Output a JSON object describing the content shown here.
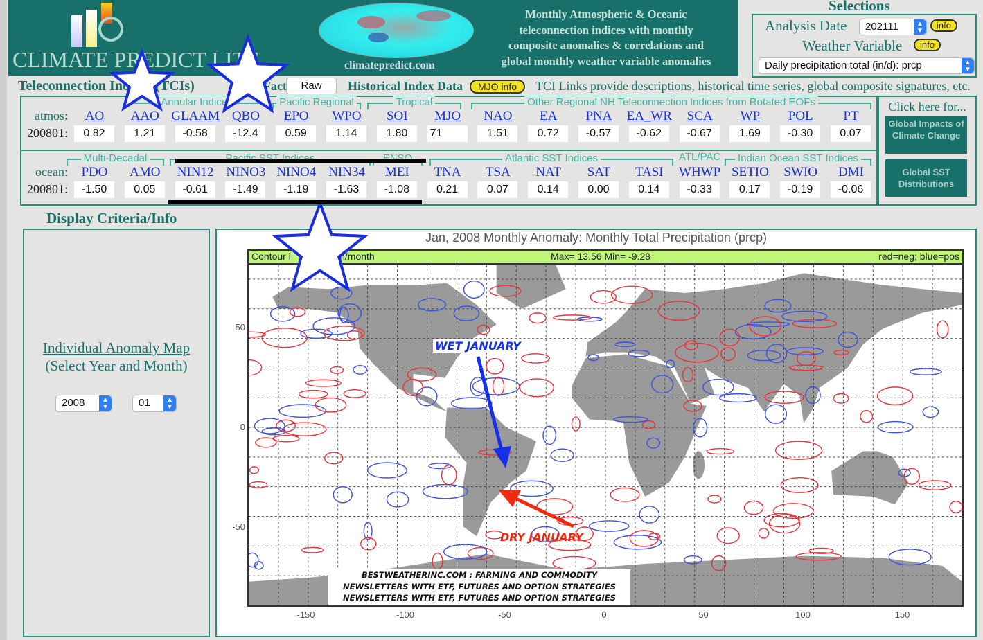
{
  "header": {
    "logo_text": "CLIMATE PREDICT LITE",
    "site_url": "climatepredict.com",
    "description": [
      "Monthly Atmospheric & Oceanic",
      "teleconnection indices with monthly",
      "composite anomalies & correlations and",
      "global monthly weather variable anomalies"
    ]
  },
  "selections": {
    "title": "Selections",
    "analysis_date_label": "Analysis Date",
    "analysis_date": "202111",
    "info_label": "info",
    "weather_variable_label": "Weather Variable",
    "weather_variable": "Daily precipitation total (in/d): prcp"
  },
  "tci": {
    "title": "Teleconnection Indices (TCIs)",
    "factor_label": "Factor",
    "factor_value": "Raw",
    "historical_label": "Historical Index Data",
    "mjo_info": "MJO info",
    "note": "TCI Links provide descriptions, historical time series, global composite signatures, etc.",
    "atmos_label": "atmos:",
    "ocean_label": "ocean:",
    "date": "200801:",
    "atmos_groups": [
      "Annular Indices",
      "Pacific Regional",
      "Tropical",
      "Other Regional NH Teleconnection Indices from Rotated EOFs"
    ],
    "ocean_groups": [
      "Multi-Decadal",
      "Pacific SST Indices",
      "ENSO",
      "Atlantic SST Indices",
      "ATL/PAC",
      "Indian Ocean SST Indices"
    ],
    "atmos": [
      {
        "name": "AO",
        "value": "0.82"
      },
      {
        "name": "AAO",
        "value": "1.21"
      },
      {
        "name": "GLAAM",
        "value": "-0.58"
      },
      {
        "name": "QBO",
        "value": "-12.4"
      },
      {
        "name": "EPO",
        "value": "0.59"
      },
      {
        "name": "WPO",
        "value": "1.14"
      },
      {
        "name": "SOI",
        "value": "1.80"
      },
      {
        "name": "MJO",
        "value": "71"
      },
      {
        "name": "NAO",
        "value": "1.51"
      },
      {
        "name": "EA",
        "value": "0.72"
      },
      {
        "name": "PNA",
        "value": "-0.57"
      },
      {
        "name": "EA_WR",
        "value": "-0.62"
      },
      {
        "name": "SCA",
        "value": "-0.67"
      },
      {
        "name": "WP",
        "value": "1.69"
      },
      {
        "name": "POL",
        "value": "-0.30"
      },
      {
        "name": "PT",
        "value": "0.07"
      }
    ],
    "ocean": [
      {
        "name": "PDO",
        "value": "-1.50"
      },
      {
        "name": "AMO",
        "value": "0.05"
      },
      {
        "name": "NIN12",
        "value": "-0.61"
      },
      {
        "name": "NINO3",
        "value": "-1.49"
      },
      {
        "name": "NINO4",
        "value": "-1.19"
      },
      {
        "name": "NIN34",
        "value": "-1.63"
      },
      {
        "name": "MEI",
        "value": "-1.08"
      },
      {
        "name": "TNA",
        "value": "0.21"
      },
      {
        "name": "TSA",
        "value": "0.07"
      },
      {
        "name": "NAT",
        "value": "0.14"
      },
      {
        "name": "SAT",
        "value": "0.00"
      },
      {
        "name": "TASI",
        "value": "0.14"
      },
      {
        "name": "WHWP",
        "value": "-0.33"
      },
      {
        "name": "SETIO",
        "value": "0.17"
      },
      {
        "name": "SWIO",
        "value": "-0.19"
      },
      {
        "name": "DMI",
        "value": "-0.06"
      }
    ],
    "click_here": "Click here for...",
    "btn_climate": "Global Impacts of Climate Change",
    "btn_sst": "Global SST Distributions"
  },
  "display": {
    "title": "Display Criteria/Info",
    "map_link": "Individual Anomaly Map",
    "map_sub": "(Select Year and Month)",
    "year": "2008",
    "month": "01"
  },
  "map": {
    "title": "Jan, 2008   Monthly Anomaly: Monthly Total Precipitation (prcp)",
    "contour_label": "Contour i",
    "units": "in/month",
    "maxmin": "Max= 13.56  Min= -9.28",
    "legend": "red=neg; blue=pos",
    "xticks": [
      "-150",
      "-100",
      "-50",
      "0",
      "50",
      "100",
      "150"
    ],
    "yticks": [
      "50",
      "0",
      "-50"
    ],
    "colors": {
      "neg": "#e8343a",
      "pos": "#3c52e0",
      "land": "#9a9a9a"
    }
  },
  "annotations": {
    "wet": "WET JANUARY",
    "dry": "DRY JANUARY",
    "watermark": [
      "BESTWEATHERINC.COM :   FARMING AND COMMODITY",
      "NEWSLETTERS WITH ETF, FUTURES AND OPTION STRATEGIES",
      "NEWSLETTERS WITH ETF, FUTURES AND OPTION STRATEGIES"
    ]
  }
}
